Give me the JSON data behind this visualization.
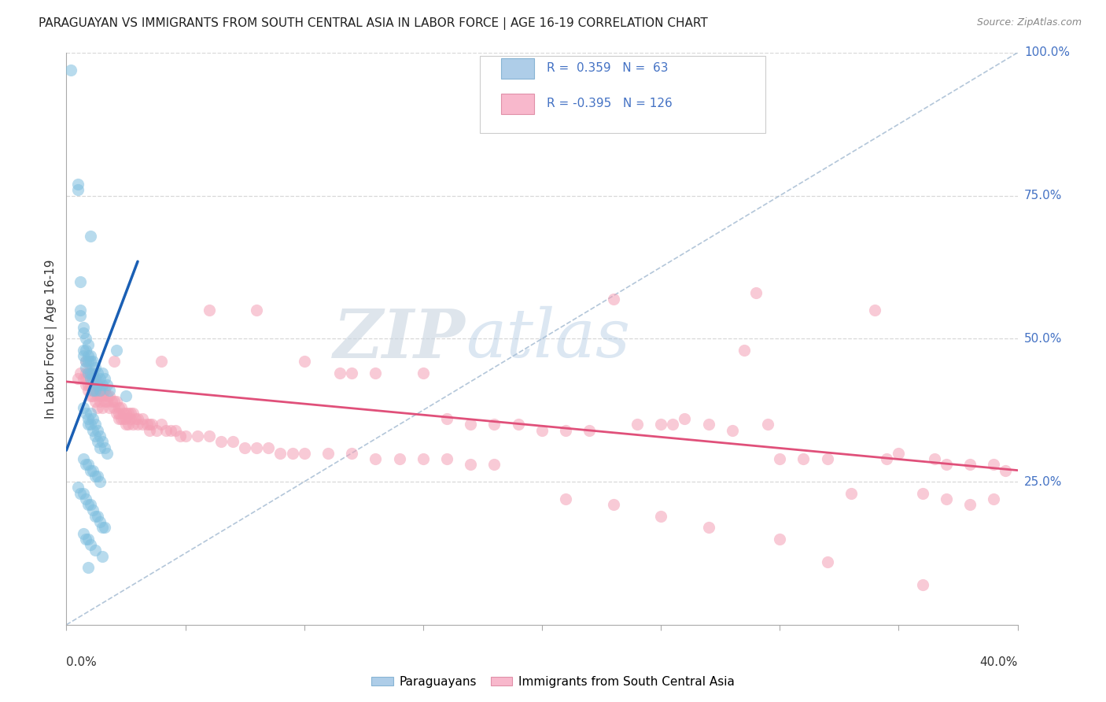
{
  "title": "PARAGUAYAN VS IMMIGRANTS FROM SOUTH CENTRAL ASIA IN LABOR FORCE | AGE 16-19 CORRELATION CHART",
  "source": "Source: ZipAtlas.com",
  "ylabel": "In Labor Force | Age 16-19",
  "blue_color": "#7fbfdf",
  "pink_color": "#f4a0b5",
  "blue_line_color": "#1a5fb4",
  "pink_line_color": "#e0507a",
  "blue_scatter": [
    [
      0.002,
      0.97
    ],
    [
      0.005,
      0.77
    ],
    [
      0.005,
      0.76
    ],
    [
      0.01,
      0.68
    ],
    [
      0.006,
      0.6
    ],
    [
      0.006,
      0.55
    ],
    [
      0.006,
      0.54
    ],
    [
      0.007,
      0.52
    ],
    [
      0.007,
      0.51
    ],
    [
      0.007,
      0.48
    ],
    [
      0.007,
      0.47
    ],
    [
      0.008,
      0.5
    ],
    [
      0.008,
      0.48
    ],
    [
      0.008,
      0.46
    ],
    [
      0.008,
      0.45
    ],
    [
      0.009,
      0.49
    ],
    [
      0.009,
      0.47
    ],
    [
      0.009,
      0.46
    ],
    [
      0.009,
      0.44
    ],
    [
      0.01,
      0.47
    ],
    [
      0.01,
      0.46
    ],
    [
      0.01,
      0.44
    ],
    [
      0.01,
      0.43
    ],
    [
      0.011,
      0.46
    ],
    [
      0.011,
      0.44
    ],
    [
      0.011,
      0.43
    ],
    [
      0.011,
      0.41
    ],
    [
      0.012,
      0.45
    ],
    [
      0.012,
      0.43
    ],
    [
      0.012,
      0.41
    ],
    [
      0.013,
      0.44
    ],
    [
      0.013,
      0.42
    ],
    [
      0.014,
      0.43
    ],
    [
      0.014,
      0.41
    ],
    [
      0.015,
      0.44
    ],
    [
      0.015,
      0.42
    ],
    [
      0.016,
      0.43
    ],
    [
      0.017,
      0.42
    ],
    [
      0.018,
      0.41
    ],
    [
      0.021,
      0.48
    ],
    [
      0.025,
      0.4
    ],
    [
      0.007,
      0.38
    ],
    [
      0.008,
      0.37
    ],
    [
      0.009,
      0.36
    ],
    [
      0.009,
      0.35
    ],
    [
      0.01,
      0.37
    ],
    [
      0.01,
      0.35
    ],
    [
      0.011,
      0.36
    ],
    [
      0.011,
      0.34
    ],
    [
      0.012,
      0.35
    ],
    [
      0.012,
      0.33
    ],
    [
      0.013,
      0.34
    ],
    [
      0.013,
      0.32
    ],
    [
      0.014,
      0.33
    ],
    [
      0.014,
      0.31
    ],
    [
      0.015,
      0.32
    ],
    [
      0.016,
      0.31
    ],
    [
      0.017,
      0.3
    ],
    [
      0.007,
      0.29
    ],
    [
      0.008,
      0.28
    ],
    [
      0.009,
      0.28
    ],
    [
      0.01,
      0.27
    ],
    [
      0.011,
      0.27
    ],
    [
      0.012,
      0.26
    ],
    [
      0.013,
      0.26
    ],
    [
      0.014,
      0.25
    ],
    [
      0.005,
      0.24
    ],
    [
      0.006,
      0.23
    ],
    [
      0.007,
      0.23
    ],
    [
      0.008,
      0.22
    ],
    [
      0.009,
      0.21
    ],
    [
      0.01,
      0.21
    ],
    [
      0.011,
      0.2
    ],
    [
      0.012,
      0.19
    ],
    [
      0.013,
      0.19
    ],
    [
      0.014,
      0.18
    ],
    [
      0.015,
      0.17
    ],
    [
      0.016,
      0.17
    ],
    [
      0.007,
      0.16
    ],
    [
      0.008,
      0.15
    ],
    [
      0.009,
      0.15
    ],
    [
      0.01,
      0.14
    ],
    [
      0.012,
      0.13
    ],
    [
      0.015,
      0.12
    ],
    [
      0.009,
      0.1
    ]
  ],
  "pink_scatter": [
    [
      0.005,
      0.43
    ],
    [
      0.006,
      0.44
    ],
    [
      0.007,
      0.43
    ],
    [
      0.008,
      0.44
    ],
    [
      0.008,
      0.43
    ],
    [
      0.008,
      0.42
    ],
    [
      0.009,
      0.44
    ],
    [
      0.009,
      0.42
    ],
    [
      0.009,
      0.41
    ],
    [
      0.01,
      0.44
    ],
    [
      0.01,
      0.42
    ],
    [
      0.01,
      0.4
    ],
    [
      0.011,
      0.43
    ],
    [
      0.011,
      0.41
    ],
    [
      0.011,
      0.4
    ],
    [
      0.012,
      0.43
    ],
    [
      0.012,
      0.41
    ],
    [
      0.012,
      0.39
    ],
    [
      0.013,
      0.42
    ],
    [
      0.013,
      0.41
    ],
    [
      0.013,
      0.4
    ],
    [
      0.013,
      0.38
    ],
    [
      0.014,
      0.42
    ],
    [
      0.014,
      0.4
    ],
    [
      0.014,
      0.39
    ],
    [
      0.015,
      0.41
    ],
    [
      0.015,
      0.4
    ],
    [
      0.015,
      0.38
    ],
    [
      0.016,
      0.41
    ],
    [
      0.016,
      0.39
    ],
    [
      0.017,
      0.4
    ],
    [
      0.017,
      0.39
    ],
    [
      0.018,
      0.4
    ],
    [
      0.018,
      0.38
    ],
    [
      0.019,
      0.39
    ],
    [
      0.02,
      0.39
    ],
    [
      0.02,
      0.38
    ],
    [
      0.021,
      0.39
    ],
    [
      0.021,
      0.37
    ],
    [
      0.022,
      0.38
    ],
    [
      0.022,
      0.37
    ],
    [
      0.022,
      0.36
    ],
    [
      0.023,
      0.38
    ],
    [
      0.023,
      0.36
    ],
    [
      0.024,
      0.37
    ],
    [
      0.024,
      0.36
    ],
    [
      0.025,
      0.37
    ],
    [
      0.025,
      0.36
    ],
    [
      0.025,
      0.35
    ],
    [
      0.026,
      0.37
    ],
    [
      0.026,
      0.35
    ],
    [
      0.027,
      0.37
    ],
    [
      0.027,
      0.36
    ],
    [
      0.028,
      0.37
    ],
    [
      0.028,
      0.35
    ],
    [
      0.029,
      0.36
    ],
    [
      0.03,
      0.36
    ],
    [
      0.03,
      0.35
    ],
    [
      0.032,
      0.36
    ],
    [
      0.032,
      0.35
    ],
    [
      0.034,
      0.35
    ],
    [
      0.035,
      0.35
    ],
    [
      0.035,
      0.34
    ],
    [
      0.036,
      0.35
    ],
    [
      0.038,
      0.34
    ],
    [
      0.04,
      0.35
    ],
    [
      0.042,
      0.34
    ],
    [
      0.044,
      0.34
    ],
    [
      0.046,
      0.34
    ],
    [
      0.048,
      0.33
    ],
    [
      0.05,
      0.33
    ],
    [
      0.055,
      0.33
    ],
    [
      0.06,
      0.33
    ],
    [
      0.065,
      0.32
    ],
    [
      0.07,
      0.32
    ],
    [
      0.075,
      0.31
    ],
    [
      0.08,
      0.31
    ],
    [
      0.085,
      0.31
    ],
    [
      0.09,
      0.3
    ],
    [
      0.095,
      0.3
    ],
    [
      0.1,
      0.3
    ],
    [
      0.11,
      0.3
    ],
    [
      0.12,
      0.3
    ],
    [
      0.13,
      0.29
    ],
    [
      0.14,
      0.29
    ],
    [
      0.15,
      0.29
    ],
    [
      0.16,
      0.29
    ],
    [
      0.17,
      0.28
    ],
    [
      0.18,
      0.28
    ],
    [
      0.008,
      0.46
    ],
    [
      0.02,
      0.46
    ],
    [
      0.04,
      0.46
    ],
    [
      0.06,
      0.55
    ],
    [
      0.08,
      0.55
    ],
    [
      0.1,
      0.46
    ],
    [
      0.115,
      0.44
    ],
    [
      0.12,
      0.44
    ],
    [
      0.13,
      0.44
    ],
    [
      0.15,
      0.44
    ],
    [
      0.16,
      0.36
    ],
    [
      0.17,
      0.35
    ],
    [
      0.18,
      0.35
    ],
    [
      0.19,
      0.35
    ],
    [
      0.2,
      0.34
    ],
    [
      0.21,
      0.34
    ],
    [
      0.22,
      0.34
    ],
    [
      0.23,
      0.57
    ],
    [
      0.24,
      0.35
    ],
    [
      0.25,
      0.35
    ],
    [
      0.255,
      0.35
    ],
    [
      0.26,
      0.36
    ],
    [
      0.27,
      0.35
    ],
    [
      0.28,
      0.34
    ],
    [
      0.285,
      0.48
    ],
    [
      0.29,
      0.58
    ],
    [
      0.295,
      0.35
    ],
    [
      0.3,
      0.29
    ],
    [
      0.31,
      0.29
    ],
    [
      0.32,
      0.29
    ],
    [
      0.33,
      0.23
    ],
    [
      0.34,
      0.55
    ],
    [
      0.345,
      0.29
    ],
    [
      0.35,
      0.3
    ],
    [
      0.36,
      0.23
    ],
    [
      0.365,
      0.29
    ],
    [
      0.37,
      0.28
    ],
    [
      0.38,
      0.28
    ],
    [
      0.39,
      0.28
    ],
    [
      0.395,
      0.27
    ],
    [
      0.21,
      0.22
    ],
    [
      0.23,
      0.21
    ],
    [
      0.25,
      0.19
    ],
    [
      0.27,
      0.17
    ],
    [
      0.3,
      0.15
    ],
    [
      0.32,
      0.11
    ],
    [
      0.36,
      0.07
    ],
    [
      0.37,
      0.22
    ],
    [
      0.38,
      0.21
    ],
    [
      0.39,
      0.22
    ]
  ],
  "blue_trend_x": [
    0.0,
    0.03
  ],
  "blue_trend_y": [
    0.305,
    0.635
  ],
  "pink_trend_x": [
    0.0,
    0.4
  ],
  "pink_trend_y": [
    0.425,
    0.27
  ],
  "dashed_line_x": [
    0.0,
    0.4
  ],
  "dashed_line_y": [
    0.0,
    1.0
  ],
  "watermark_zip": "ZIP",
  "watermark_atlas": "atlas",
  "xmin": 0.0,
  "xmax": 0.4,
  "ymin": 0.0,
  "ymax": 1.0,
  "xtick_labels_positions": [
    0.0,
    0.05,
    0.1,
    0.15,
    0.2,
    0.25,
    0.3,
    0.35,
    0.4
  ],
  "ytick_positions": [
    0.25,
    0.5,
    0.75,
    1.0
  ],
  "ytick_labels": [
    "25.0%",
    "50.0%",
    "75.0%",
    "100.0%"
  ],
  "right_axis_color": "#4472c4",
  "grid_color": "#d8d8d8",
  "legend_r1_text": "R =  0.359   N =  63",
  "legend_r2_text": "R = -0.395   N = 126",
  "legend_color": "#4472c4"
}
